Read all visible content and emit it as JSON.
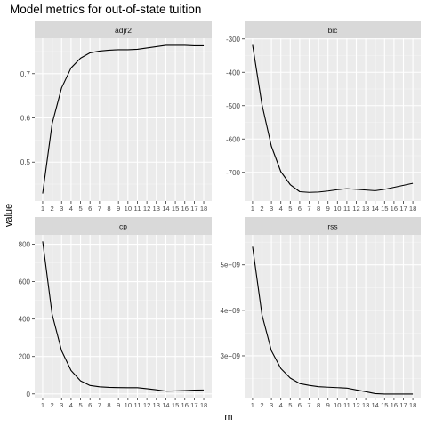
{
  "chart_data": {
    "type": "line",
    "title": "Model metrics for out-of-state tuition",
    "xlabel": "m",
    "ylabel": "value",
    "x": [
      1,
      2,
      3,
      4,
      5,
      6,
      7,
      8,
      9,
      10,
      11,
      12,
      13,
      14,
      15,
      16,
      17,
      18
    ],
    "line_color": "#000000",
    "panel_bg": "#ebebeb",
    "strip_bg": "#d9d9d9",
    "grid": true,
    "facets": [
      {
        "name": "adjr2",
        "ylim": [
          0.412,
          0.78
        ],
        "yticks": [
          0.5,
          0.6,
          0.7
        ],
        "ytick_labels": [
          "0.5",
          "0.6",
          "0.7"
        ],
        "values": [
          0.429,
          0.587,
          0.668,
          0.713,
          0.735,
          0.747,
          0.751,
          0.753,
          0.754,
          0.754,
          0.755,
          0.758,
          0.761,
          0.764,
          0.764,
          0.764,
          0.763,
          0.763
        ]
      },
      {
        "name": "bic",
        "ylim": [
          -786,
          -298
        ],
        "yticks": [
          -300,
          -400,
          -500,
          -600,
          -700
        ],
        "ytick_labels": [
          "-300",
          "-400",
          "-500",
          "-600",
          "-700"
        ],
        "values": [
          -318,
          -497,
          -622,
          -698,
          -737,
          -758,
          -760,
          -759,
          -756,
          -752,
          -749,
          -751,
          -753,
          -755,
          -751,
          -745,
          -739,
          -733
        ]
      },
      {
        "name": "cp",
        "ylim": [
          -20,
          850
        ],
        "yticks": [
          0,
          200,
          400,
          600,
          800
        ],
        "ytick_labels": [
          "0",
          "200",
          "400",
          "600",
          "800"
        ],
        "values": [
          815,
          425,
          230,
          125,
          70,
          45,
          38,
          35,
          34,
          33,
          33,
          28,
          22,
          15,
          16,
          18,
          20,
          21
        ]
      },
      {
        "name": "rss",
        "ylim": [
          2080000000,
          5660000000
        ],
        "yticks": [
          3000000000,
          4000000000,
          5000000000
        ],
        "ytick_labels": [
          "3e+09",
          "4e+09",
          "5e+09"
        ],
        "values": [
          5400000000,
          3900000000,
          3110000000,
          2720000000,
          2510000000,
          2390000000,
          2350000000,
          2320000000,
          2310000000,
          2300000000,
          2290000000,
          2250000000,
          2210000000,
          2170000000,
          2160000000,
          2160000000,
          2160000000,
          2160000000
        ]
      }
    ]
  }
}
